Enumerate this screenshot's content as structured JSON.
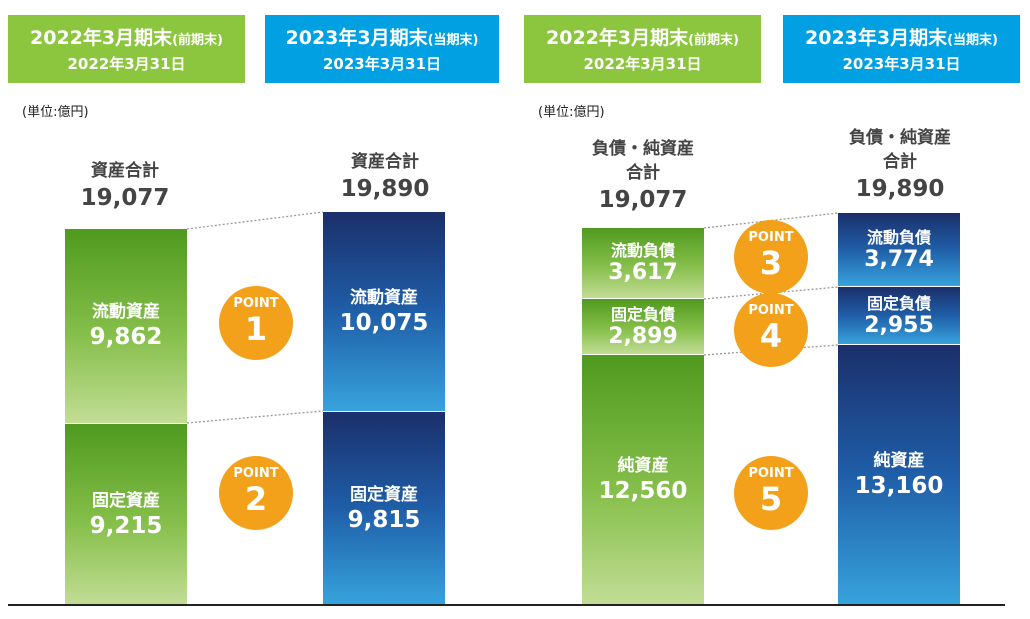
{
  "headers": [
    {
      "title": "2022年3月期末",
      "suffix": "(前期末)",
      "date": "2022年3月31日"
    },
    {
      "title": "2023年3月期末",
      "suffix": "(当期末)",
      "date": "2023年3月31日"
    },
    {
      "title": "2022年3月期末",
      "suffix": "(前期末)",
      "date": "2022年3月31日"
    },
    {
      "title": "2023年3月期末",
      "suffix": "(当期末)",
      "date": "2023年3月31日"
    }
  ],
  "unit_left": "(単位:億円)",
  "unit_right": "(単位:億円)",
  "chart_data": [
    {
      "type": "bar",
      "stacked": true,
      "categories": [
        "2022年3月期末",
        "2023年3月期末"
      ],
      "totals": {
        "label": "資産合計",
        "values": [
          "19,077",
          "19,890"
        ]
      },
      "series": [
        {
          "name": "流動資産",
          "values": [
            9862,
            10075
          ],
          "labels": [
            "9,862",
            "10,075"
          ]
        },
        {
          "name": "固定資産",
          "values": [
            9215,
            9815
          ],
          "labels": [
            "9,215",
            "9,815"
          ]
        }
      ],
      "points": [
        "1",
        "2"
      ],
      "point_word": "POINT",
      "colors": {
        "prev": "#6aab2e",
        "curr": "#1f4f99"
      }
    },
    {
      "type": "bar",
      "stacked": true,
      "categories": [
        "2022年3月期末",
        "2023年3月期末"
      ],
      "totals": {
        "label_line1": "負債・純資産",
        "label_line2": "合計",
        "values": [
          "19,077",
          "19,890"
        ]
      },
      "series": [
        {
          "name": "流動負債",
          "values": [
            3617,
            3774
          ],
          "labels": [
            "3,617",
            "3,774"
          ]
        },
        {
          "name": "固定負債",
          "values": [
            2899,
            2955
          ],
          "labels": [
            "2,899",
            "2,955"
          ]
        },
        {
          "name": "純資産",
          "values": [
            12560,
            13160
          ],
          "labels": [
            "12,560",
            "13,160"
          ]
        }
      ],
      "points": [
        "3",
        "4",
        "5"
      ],
      "point_word": "POINT",
      "colors": {
        "prev": "#6aab2e",
        "curr": "#1f4f99"
      }
    }
  ]
}
